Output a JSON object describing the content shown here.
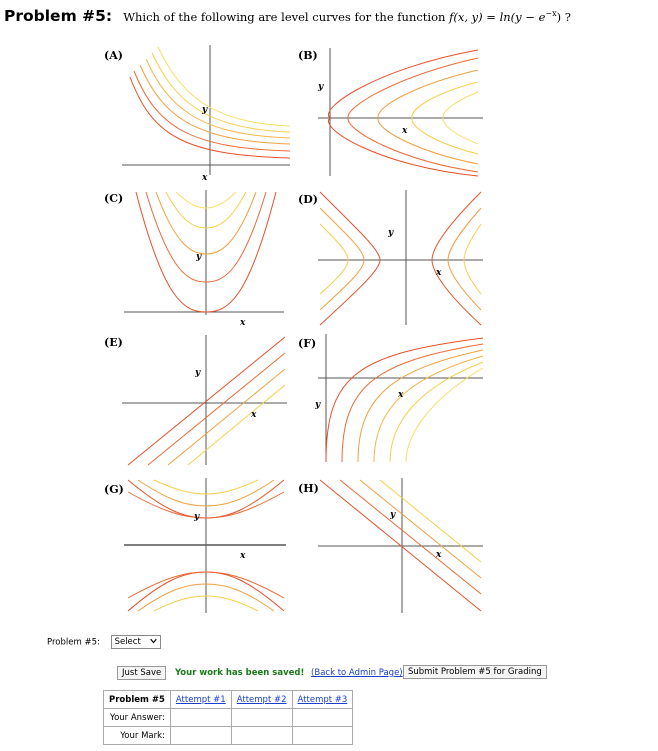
{
  "header": {
    "problem_title": "Problem #5:",
    "question_prefix": "Which of the following are level curves for the function ",
    "function_text": "f(x, y) = ln(y − e",
    "function_exp": "−x",
    "function_close": ") ?"
  },
  "plots": [
    {
      "label": "(A)",
      "x_axis": "x",
      "y_axis": "y"
    },
    {
      "label": "(B)",
      "x_axis": "x",
      "y_axis": "y"
    },
    {
      "label": "(C)",
      "x_axis": "x",
      "y_axis": "y"
    },
    {
      "label": "(D)",
      "x_axis": "x",
      "y_axis": "y"
    },
    {
      "label": "(E)",
      "x_axis": "x",
      "y_axis": "y"
    },
    {
      "label": "(F)",
      "x_axis": "x",
      "y_axis": "y"
    },
    {
      "label": "(G)",
      "x_axis": "x",
      "y_axis": "y"
    },
    {
      "label": "(H)",
      "x_axis": "x",
      "y_axis": "y"
    }
  ],
  "colors": {
    "red": "#e8502a",
    "orange": "#f0a040",
    "yellow": "#f5d04a",
    "axis": "#555555"
  },
  "answer_row": {
    "label": "Problem #5:",
    "select_value": "Select"
  },
  "actions": {
    "just_save": "Just Save",
    "saved_msg": "Your work has been saved!",
    "admin_link": "(Back to Admin Page)",
    "submit": "Submit Problem #5 for Grading"
  },
  "attempts_table": {
    "problem": "Problem #5",
    "attempts": [
      "Attempt #1",
      "Attempt #2",
      "Attempt #3"
    ],
    "your_answer": "Your Answer:",
    "your_mark": "Your Mark:"
  }
}
